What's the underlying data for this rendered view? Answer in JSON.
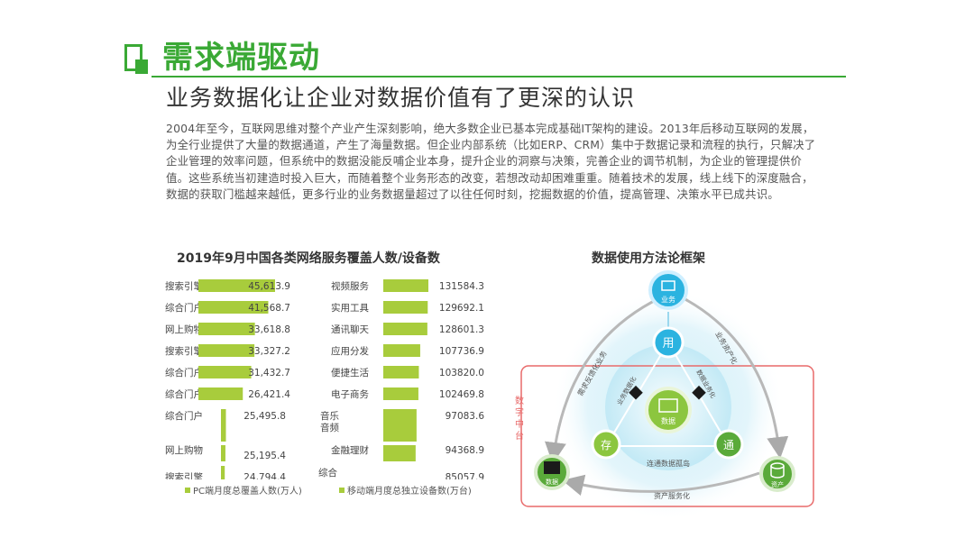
{
  "header": {
    "title": "需求端驱动",
    "subtitle": "业务数据化让企业对数据价值有了更深的认识",
    "paragraph": "2004年至今，互联网思维对整个产业产生深刻影响，绝大多数企业已基本完成基础IT架构的建设。2013年后移动互联网的发展，为全行业提供了大量的数据通道，产生了海量数据。但企业内部系统（比如ERP、CRM）集中于数据记录和流程的执行，只解决了企业管理的效率问题，但系统中的数据没能反哺企业本身，提升企业的洞察与决策，完善企业的调节机制，为企业的管理提供价值。这些系统当初建造时投入巨大，而随着整个业务形态的改变，若想改动却困难重重。随着技术的发展，线上线下的深度融合，数据的获取门槛越来越低，更多行业的业务数据量超过了以往任何时刻，挖掘数据的价值，提高管理、决策水平已成共识。"
  },
  "colors": {
    "brand_green": "#3aa935",
    "bar_green": "#a8cc3c",
    "accent_blue": "#2bb3e0",
    "red_box": "#e86a6a"
  },
  "chart_data": {
    "type": "bar",
    "title": "2019年9月中国各类网络服务覆盖人数/设备数",
    "series": [
      {
        "name": "PC端月度总覆盖人数(万人)",
        "categories": [
          "搜索引擎",
          "综合门户",
          "网上购物",
          "搜索引擎",
          "综合门户",
          "综合门户",
          "综合门户",
          "网上购物",
          "搜索引擎"
        ],
        "values": [
          45613.9,
          41568.7,
          33618.8,
          33327.2,
          31432.7,
          26421.4,
          25495.8,
          25195.4,
          24794.4
        ],
        "labels": [
          "45,613.9",
          "41,568.7",
          "33,618.8",
          "33,327.2",
          "31,432.7",
          "26,421.4",
          "25,495.8",
          "25,195.4",
          "24,794.4"
        ]
      },
      {
        "name": "移动端月度总独立设备数(万台)",
        "categories": [
          "视频服务",
          "实用工具",
          "通讯聊天",
          "应用分发",
          "便捷生活",
          "电子商务",
          "音乐音频",
          "金融理财",
          "综合资讯"
        ],
        "values": [
          131584.3,
          129692.1,
          128601.3,
          107736.9,
          103820.0,
          102469.8,
          97083.6,
          94368.9,
          85057.9
        ],
        "labels": [
          "131584.3",
          "129692.1",
          "128601.3",
          "107736.9",
          "103820.0",
          "102469.8",
          "97083.6",
          "94368.9",
          "85057.9"
        ]
      }
    ]
  },
  "diagram": {
    "title": "数据使用方法论框架",
    "top_node": "业务",
    "left_node": "数据",
    "right_node": "资产",
    "center": "数据",
    "yong": "用",
    "cun": "存",
    "tong": "通",
    "left_arc": "需求反馈化业务",
    "right_arc": "业务资产化",
    "inner_left": "业务数据化",
    "inner_right": "数据业务化",
    "bottom_inner": "连通数据孤岛",
    "bottom_outer": "资产服务化",
    "middle_platform": "数字中台"
  }
}
